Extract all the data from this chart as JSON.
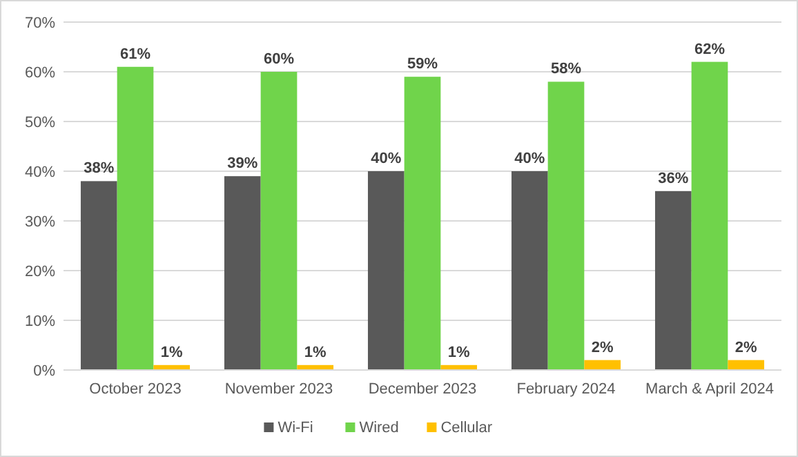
{
  "chart_data": {
    "type": "bar",
    "categories": [
      "October 2023",
      "November 2023",
      "December 2023",
      "February 2024",
      "March & April 2024"
    ],
    "series": [
      {
        "name": "Wi-Fi",
        "color": "#595959",
        "values": [
          38,
          39,
          40,
          40,
          36
        ],
        "value_labels": [
          "38%",
          "39%",
          "40%",
          "40%",
          "36%"
        ]
      },
      {
        "name": "Wired",
        "color": "#70d44b",
        "values": [
          61,
          60,
          59,
          58,
          62
        ],
        "value_labels": [
          "61%",
          "60%",
          "59%",
          "58%",
          "62%"
        ]
      },
      {
        "name": "Cellular",
        "color": "#ffc000",
        "values": [
          1,
          1,
          1,
          2,
          2
        ],
        "value_labels": [
          "1%",
          "1%",
          "1%",
          "2%",
          "2%"
        ]
      }
    ],
    "ylim": [
      0,
      70
    ],
    "yticks": [
      {
        "value": 0,
        "label": "0%"
      },
      {
        "value": 10,
        "label": "10%"
      },
      {
        "value": 20,
        "label": "20%"
      },
      {
        "value": 30,
        "label": "30%"
      },
      {
        "value": 40,
        "label": "40%"
      },
      {
        "value": 50,
        "label": "50%"
      },
      {
        "value": 60,
        "label": "60%"
      },
      {
        "value": 70,
        "label": "70%"
      }
    ],
    "grid": "y",
    "legend": "bottom"
  }
}
